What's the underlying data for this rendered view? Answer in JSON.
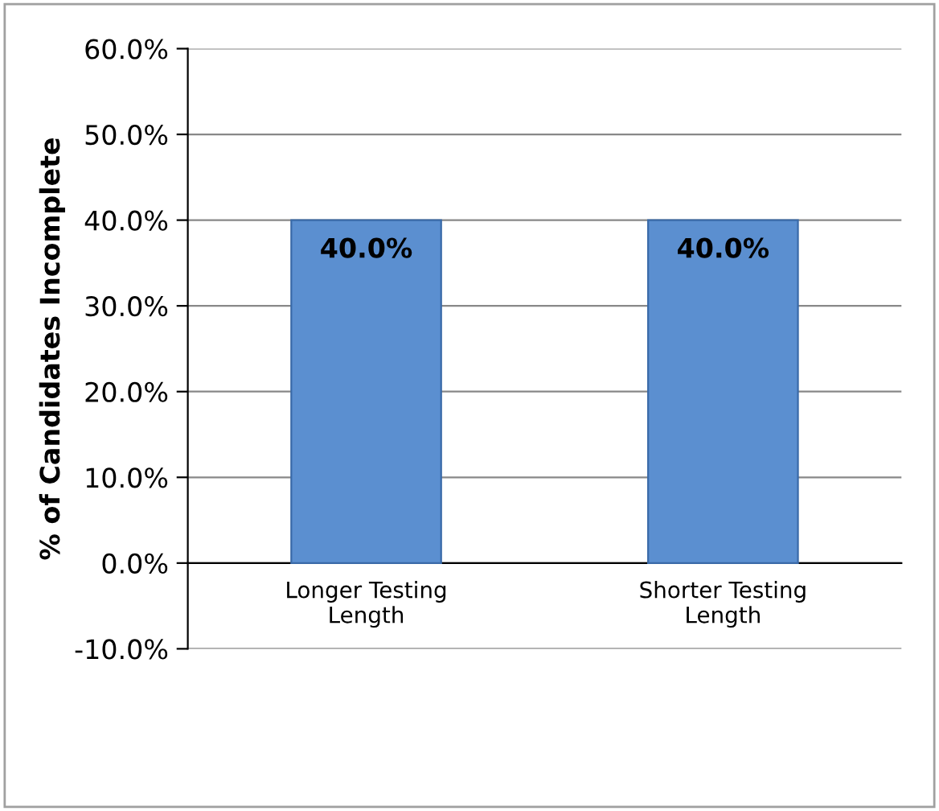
{
  "chart_data": {
    "type": "bar",
    "ylabel": "% of Candidates Incomplete",
    "categories": [
      "Longer Testing Length",
      "Shorter Testing Length"
    ],
    "values": [
      40,
      40
    ],
    "color": "#5b8fd0",
    "value_labels": [
      "40.0%",
      "40.0%"
    ],
    "ylim": [
      -10,
      60
    ],
    "yticks": [
      {
        "value": -10,
        "label": "-10.0%"
      },
      {
        "value": 0,
        "label": "0.0%"
      },
      {
        "value": 10,
        "label": "10.0%"
      },
      {
        "value": 20,
        "label": "20.0%"
      },
      {
        "value": 30,
        "label": "30.0%"
      },
      {
        "value": 40,
        "label": "40.0%"
      },
      {
        "value": 50,
        "label": "50.0%"
      },
      {
        "value": 60,
        "label": "60.0%"
      }
    ],
    "grid": "y",
    "legend": false
  }
}
